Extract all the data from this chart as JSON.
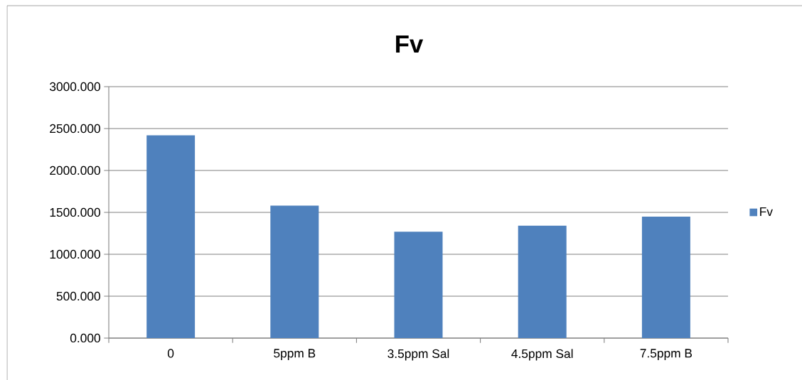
{
  "chart_data": {
    "type": "bar",
    "title": "Fv",
    "categories": [
      "0",
      "5ppm B",
      "3.5ppm Sal",
      "4.5ppm Sal",
      "7.5ppm B"
    ],
    "series": [
      {
        "name": "Fv",
        "color": "#4f81bd",
        "values": [
          2420,
          1580,
          1270,
          1340,
          1450
        ]
      }
    ],
    "ylim": [
      0,
      3000
    ],
    "yticks": [
      {
        "value": 0,
        "label": "0.000"
      },
      {
        "value": 500,
        "label": "500.000"
      },
      {
        "value": 1000,
        "label": "1000.000"
      },
      {
        "value": 1500,
        "label": "1500.000"
      },
      {
        "value": 2000,
        "label": "2000.000"
      },
      {
        "value": 2500,
        "label": "2500.000"
      },
      {
        "value": 3000,
        "label": "3000.000"
      }
    ],
    "grid": "y",
    "legend": "right"
  }
}
